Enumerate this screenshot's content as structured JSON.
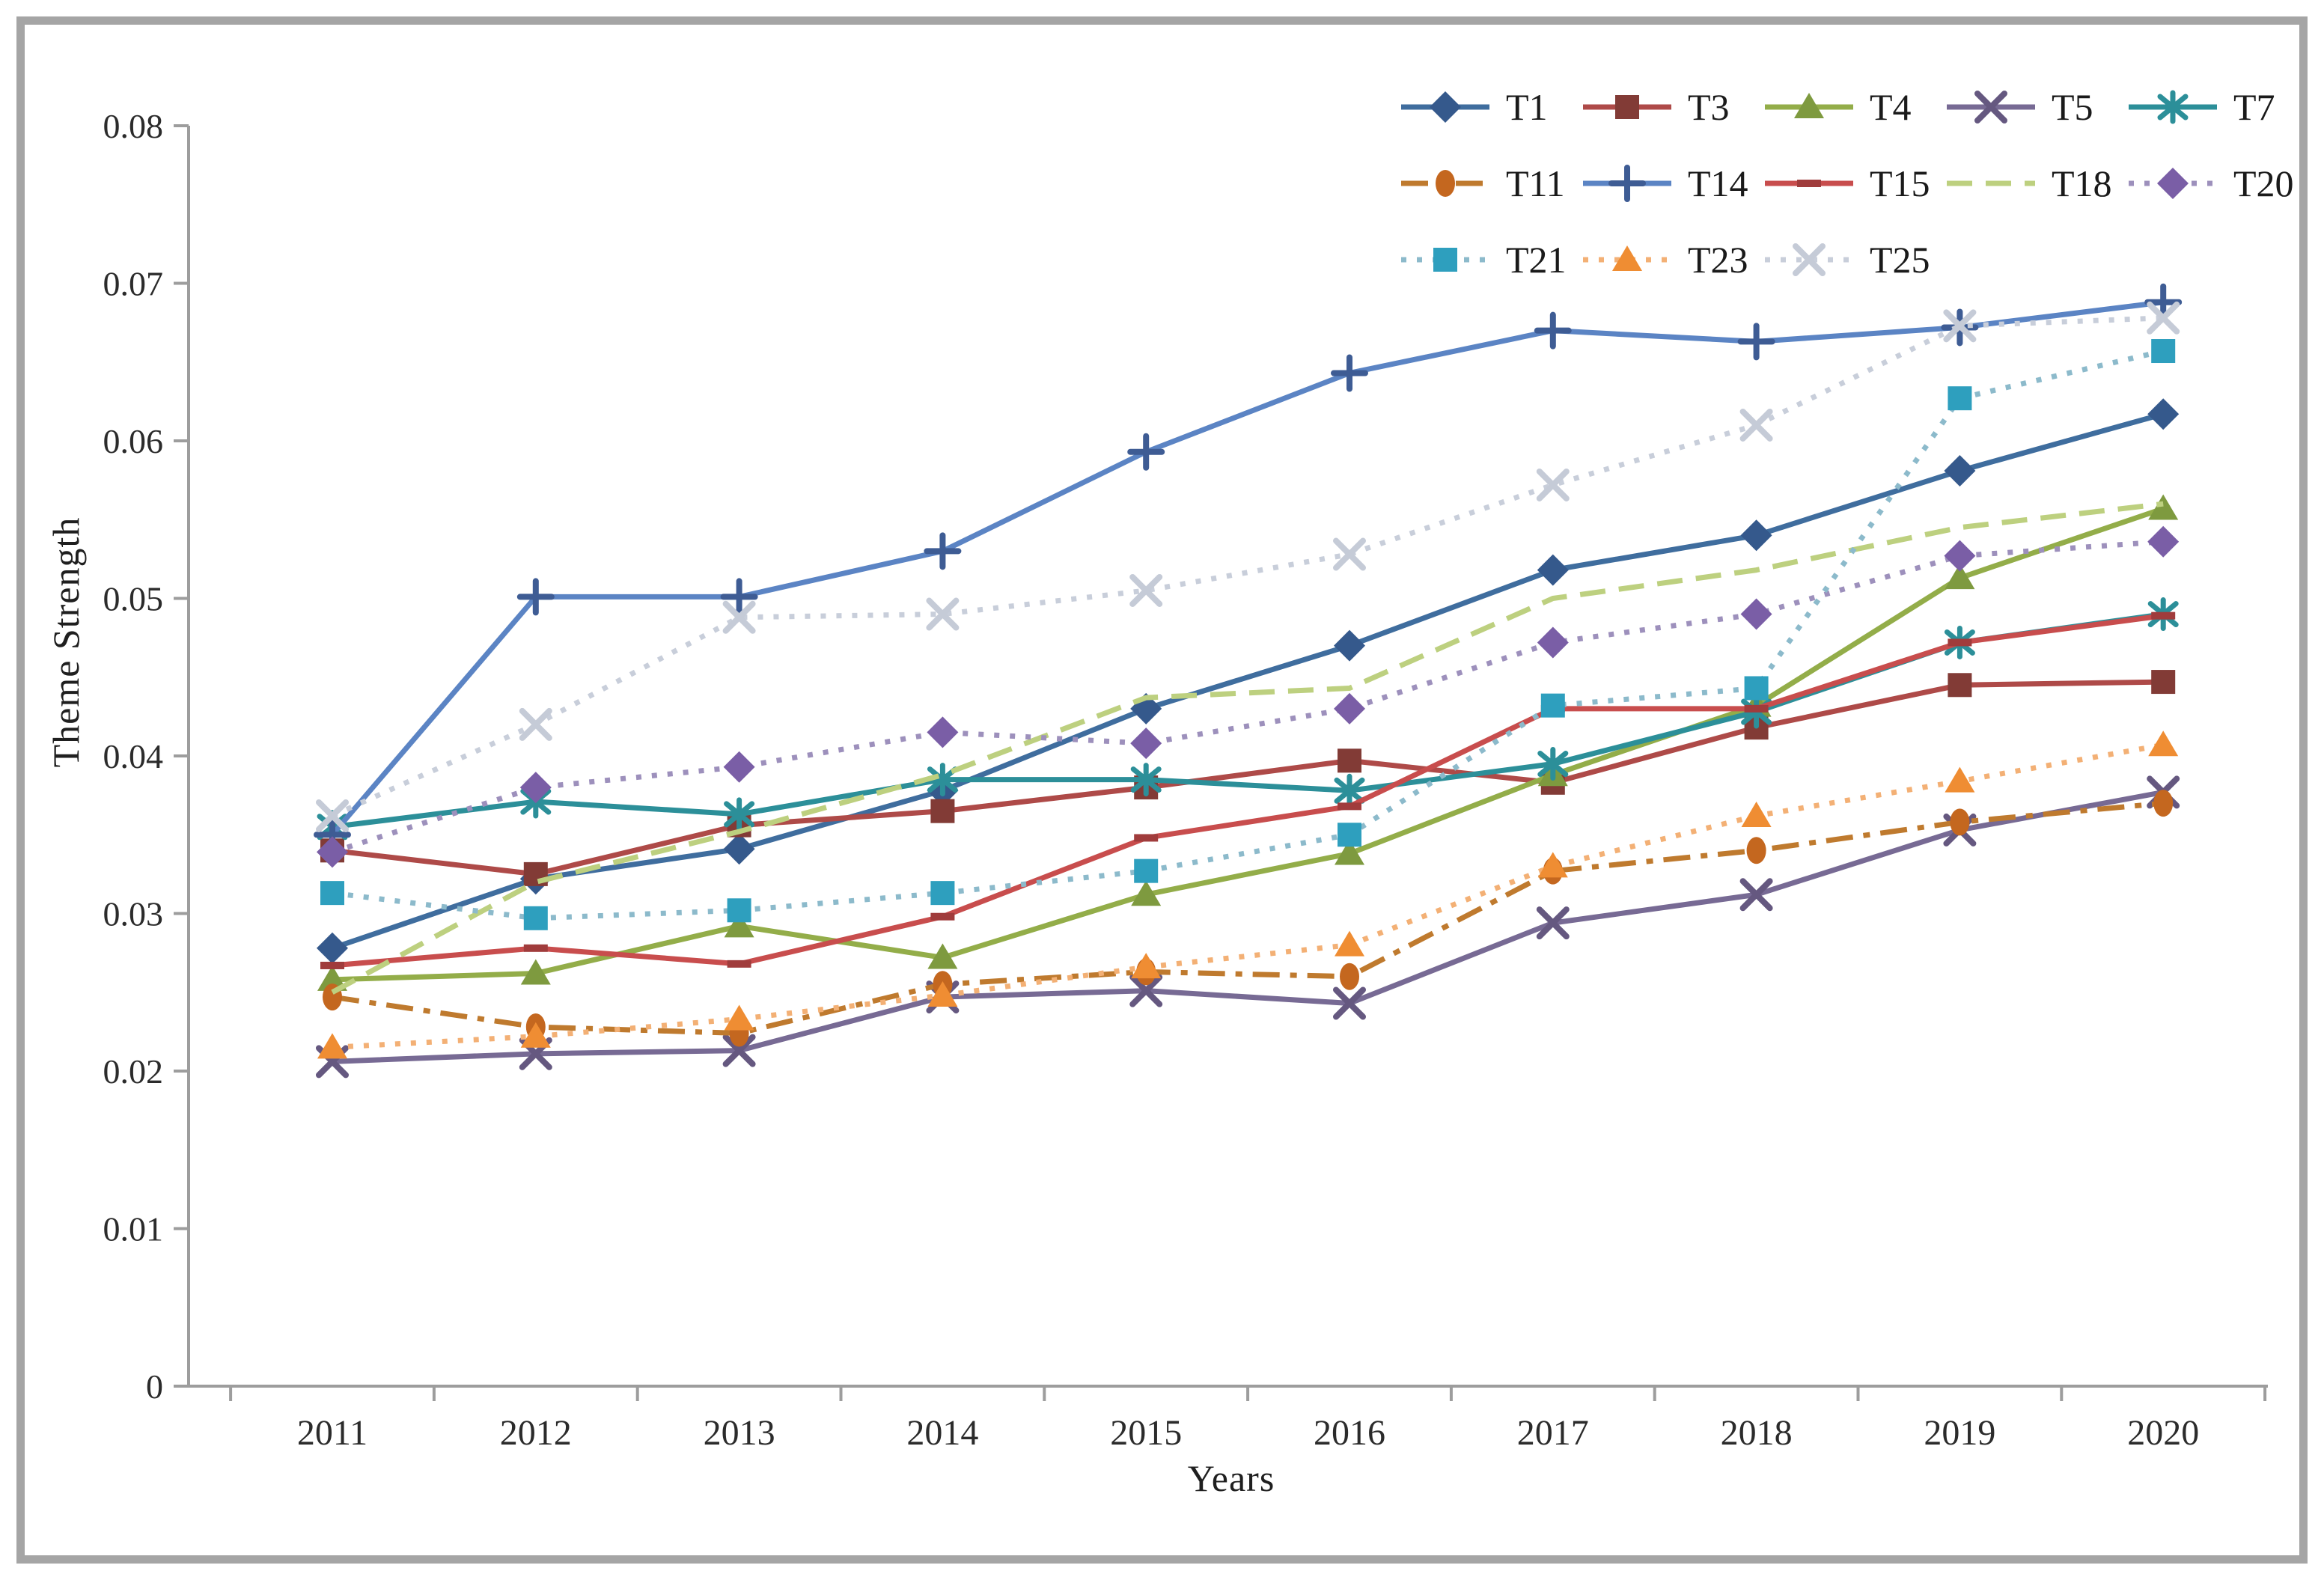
{
  "figure": {
    "border_color": "#a5a5a5",
    "background": "#ffffff",
    "axis_color": "#9d9d9d",
    "tick_label_color": "#2b2b2b",
    "legend_label_color": "#1a1a1a"
  },
  "chart_data": {
    "type": "line",
    "title": "",
    "xlabel": "Years",
    "ylabel": "Theme Strength",
    "x_categories": [
      "2011",
      "2012",
      "2013",
      "2014",
      "2015",
      "2016",
      "2017",
      "2018",
      "2019",
      "2020"
    ],
    "y_ticks": [
      "0",
      "0.01",
      "0.02",
      "0.03",
      "0.04",
      "0.05",
      "0.06",
      "0.07",
      "0.08"
    ],
    "ylim": [
      0,
      0.08
    ],
    "grid": false,
    "legend_position": "top-right",
    "legend_rows": [
      [
        "T1",
        "T3",
        "T4",
        "T5",
        "T7"
      ],
      [
        "T11",
        "T14",
        "T15",
        "T18",
        "T20"
      ],
      [
        "T21",
        "T23",
        "T25"
      ]
    ],
    "series": [
      {
        "name": "T1",
        "color": "#3F6D9E",
        "marker_color": "#35598C",
        "marker": "diamond",
        "line_style": "solid",
        "values": [
          0.0278,
          0.0322,
          0.0341,
          0.0378,
          0.043,
          0.047,
          0.0518,
          0.054,
          0.0581,
          0.0617
        ]
      },
      {
        "name": "T3",
        "color": "#AE4A48",
        "marker_color": "#823B36",
        "marker": "square",
        "line_style": "solid",
        "values": [
          0.034,
          0.0325,
          0.0356,
          0.0365,
          0.038,
          0.0397,
          0.0383,
          0.0418,
          0.0445,
          0.0447
        ]
      },
      {
        "name": "T4",
        "color": "#93AD49",
        "marker_color": "#7E9A3F",
        "marker": "triangle",
        "line_style": "solid",
        "values": [
          0.0258,
          0.0262,
          0.0292,
          0.0272,
          0.0312,
          0.0338,
          0.0388,
          0.0432,
          0.0513,
          0.0557
        ]
      },
      {
        "name": "T5",
        "color": "#776A94",
        "marker_color": "#655880",
        "marker": "x",
        "line_style": "solid",
        "values": [
          0.0206,
          0.0211,
          0.0213,
          0.0247,
          0.0251,
          0.0243,
          0.0294,
          0.0312,
          0.0353,
          0.0377
        ]
      },
      {
        "name": "T7",
        "color": "#2C8F99",
        "marker_color": "#2C8F99",
        "marker": "asterisk",
        "line_style": "solid",
        "values": [
          0.0355,
          0.0371,
          0.0363,
          0.0385,
          0.0385,
          0.0378,
          0.0395,
          0.0428,
          0.0472,
          0.049
        ]
      },
      {
        "name": "T11",
        "color": "#BF7A2E",
        "marker_color": "#C4671F",
        "marker": "circle",
        "line_style": "dashdot",
        "values": [
          0.0247,
          0.0228,
          0.0224,
          0.0255,
          0.0263,
          0.026,
          0.0327,
          0.034,
          0.0358,
          0.037
        ]
      },
      {
        "name": "T14",
        "color": "#5B84C4",
        "marker_color": "#3E5C94",
        "marker": "plus",
        "line_style": "solid",
        "values": [
          0.035,
          0.0501,
          0.0501,
          0.053,
          0.0593,
          0.0643,
          0.067,
          0.0663,
          0.0672,
          0.0688
        ]
      },
      {
        "name": "T15",
        "color": "#C84D4D",
        "marker_color": "#A03C3C",
        "marker": "dash",
        "line_style": "solid",
        "values": [
          0.0267,
          0.0278,
          0.0268,
          0.0298,
          0.0348,
          0.0368,
          0.043,
          0.043,
          0.0472,
          0.0489
        ]
      },
      {
        "name": "T18",
        "color": "#BDD07F",
        "marker_color": "#BDD07F",
        "marker": "none",
        "line_style": "dash",
        "values": [
          0.025,
          0.032,
          0.0352,
          0.0388,
          0.0437,
          0.0443,
          0.05,
          0.0518,
          0.0545,
          0.056
        ]
      },
      {
        "name": "T20",
        "color": "#9D90BC",
        "marker_color": "#7A5EA6",
        "marker": "diamond",
        "line_style": "dot",
        "values": [
          0.0339,
          0.038,
          0.0393,
          0.0415,
          0.0408,
          0.043,
          0.0472,
          0.049,
          0.0527,
          0.0536
        ]
      },
      {
        "name": "T21",
        "color": "#8CBACB",
        "marker_color": "#2E9FBE",
        "marker": "square",
        "line_style": "dot",
        "values": [
          0.0313,
          0.0297,
          0.0302,
          0.0313,
          0.0327,
          0.035,
          0.0432,
          0.0443,
          0.0627,
          0.0657
        ]
      },
      {
        "name": "T23",
        "color": "#F3B075",
        "marker_color": "#EF8D33",
        "marker": "triangle",
        "line_style": "dot",
        "values": [
          0.0215,
          0.0222,
          0.0233,
          0.0248,
          0.0266,
          0.028,
          0.033,
          0.0362,
          0.0384,
          0.0407
        ]
      },
      {
        "name": "T25",
        "color": "#C8CEDA",
        "marker_color": "#C5CBD7",
        "marker": "x",
        "line_style": "dot",
        "values": [
          0.0362,
          0.042,
          0.0488,
          0.049,
          0.0505,
          0.0528,
          0.0572,
          0.061,
          0.0673,
          0.0678
        ]
      }
    ]
  }
}
